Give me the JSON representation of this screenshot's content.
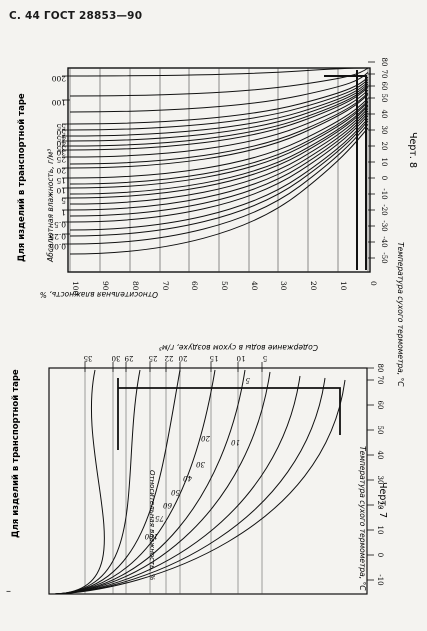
{
  "header": "С. 44 ГОСТ 28853—90",
  "chart8": {
    "caption": "Черт. 8",
    "left_title": "Для изделий в транспортной таре",
    "ylabel": "Абсолютная влажность, г/м³",
    "xlabel": "Относительная влажность, %",
    "tlabel": "Температура сухого термометра, °С",
    "rh_ticks": [
      "100",
      "90",
      "80",
      "70",
      "60",
      "50",
      "40",
      "30",
      "20",
      "10",
      "0"
    ],
    "abs_ticks": [
      "200",
      "100",
      "55",
      "50",
      "45",
      "40",
      "35",
      "30",
      "25",
      "20",
      "15",
      "10",
      "5",
      "1",
      "0.5",
      "0.25",
      "0.05"
    ],
    "temp_ticks": [
      "-50",
      "-40",
      "-30",
      "-20",
      "-10",
      "0",
      "10",
      "20",
      "30",
      "40",
      "50",
      "60",
      "70",
      "80"
    ]
  },
  "chart7": {
    "caption": "Черт. 7",
    "left_title": "Для изделий в транспортной таре",
    "content_label": "Содержание воды в сухом воздухе, г/м³",
    "rh_label": "Относительная влажность, %",
    "tlabel": "Температура сухого термометра, °С",
    "top_ticks": [
      "35",
      "30",
      "29",
      "25",
      "22",
      "20",
      "15",
      "10",
      "5"
    ],
    "temp_ticks": [
      "-10",
      "0",
      "10",
      "20",
      "30",
      "40",
      "50",
      "60",
      "70",
      "80"
    ],
    "curve_labels": [
      "5",
      "10",
      "20",
      "30",
      "40",
      "50",
      "60",
      "75",
      "100"
    ]
  }
}
